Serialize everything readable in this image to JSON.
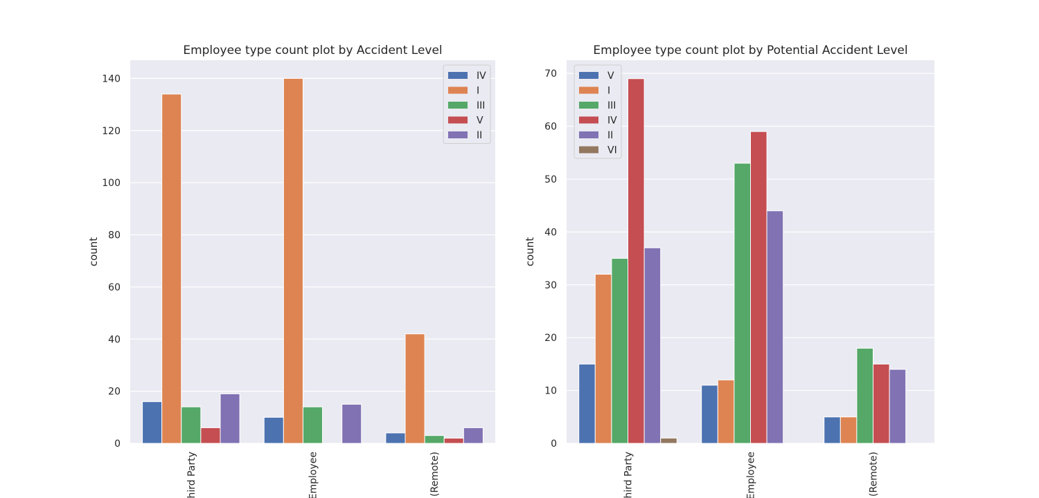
{
  "chart_data": [
    {
      "type": "bar",
      "title": "Employee type count plot by Accident Level",
      "xlabel": "",
      "ylabel": "count",
      "categories": [
        "hird Party",
        "Employee",
        "(Remote)"
      ],
      "ylim": [
        0,
        147
      ],
      "yticks": [
        0,
        20,
        40,
        60,
        80,
        100,
        120,
        140
      ],
      "grid": true,
      "legend_position": "top-right",
      "series": [
        {
          "name": "IV",
          "color": "#4c72b0",
          "values": [
            16,
            10,
            4
          ]
        },
        {
          "name": "I",
          "color": "#dd8452",
          "values": [
            134,
            140,
            42
          ]
        },
        {
          "name": "III",
          "color": "#55a868",
          "values": [
            14,
            14,
            3
          ]
        },
        {
          "name": "V",
          "color": "#c44e52",
          "values": [
            6,
            0,
            2
          ]
        },
        {
          "name": "II",
          "color": "#8172b3",
          "values": [
            19,
            15,
            6
          ]
        }
      ]
    },
    {
      "type": "bar",
      "title": "Employee type count plot by Potential Accident Level",
      "xlabel": "",
      "ylabel": "count",
      "categories": [
        "hird Party",
        "Employee",
        "(Remote)"
      ],
      "ylim": [
        0,
        72.5
      ],
      "yticks": [
        0,
        10,
        20,
        30,
        40,
        50,
        60,
        70
      ],
      "grid": true,
      "legend_position": "top-left",
      "series": [
        {
          "name": "V",
          "color": "#4c72b0",
          "values": [
            15,
            11,
            5
          ]
        },
        {
          "name": "I",
          "color": "#dd8452",
          "values": [
            32,
            12,
            5
          ]
        },
        {
          "name": "III",
          "color": "#55a868",
          "values": [
            35,
            53,
            18
          ]
        },
        {
          "name": "IV",
          "color": "#c44e52",
          "values": [
            69,
            59,
            15
          ]
        },
        {
          "name": "II",
          "color": "#8172b3",
          "values": [
            37,
            44,
            14
          ]
        },
        {
          "name": "VI",
          "color": "#937860",
          "values": [
            1,
            0,
            0
          ]
        }
      ]
    }
  ],
  "style": {
    "axes_background": "#eaeaf2",
    "grid_color": "#ffffff",
    "text_color": "#262626"
  }
}
